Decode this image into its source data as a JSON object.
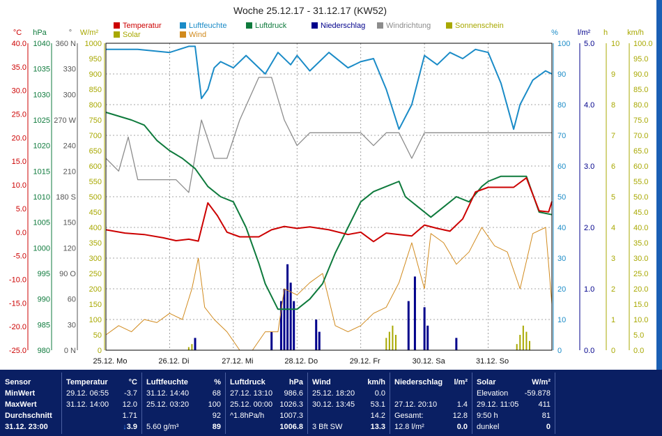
{
  "title": "Woche 25.12.17 - 31.12.17 (KW52)",
  "colors": {
    "temperatur": "#cc0000",
    "luftfeuchte": "#1a8bc7",
    "luftdruck": "#0e7a3c",
    "niederschlag": "#00008b",
    "windrichtung": "#8c8c8c",
    "sonnenschein": "#a8a800",
    "solar": "#a8a800",
    "wind": "#d18a1d",
    "panel_bg": "#0a1f63"
  },
  "legend": [
    {
      "label": "Temperatur",
      "color": "#cc0000"
    },
    {
      "label": "Luftfeuchte",
      "color": "#1a8bc7"
    },
    {
      "label": "Luftdruck",
      "color": "#0e7a3c"
    },
    {
      "label": "Niederschlag",
      "color": "#00008b"
    },
    {
      "label": "Windrichtung",
      "color": "#8c8c8c"
    },
    {
      "label": "Sonnenschein",
      "color": "#a8a800"
    },
    {
      "label": "Solar",
      "color": "#a8a800"
    },
    {
      "label": "Wind",
      "color": "#d18a1d"
    }
  ],
  "chart_data": {
    "type": "line",
    "title": "Woche 25.12.17 - 31.12.17 (KW52)",
    "x_range": [
      0,
      7
    ],
    "x_ticks": [
      "25.12. Mo",
      "26.12. Di",
      "27.12. Mi",
      "28.12. Do",
      "29.12. Fr",
      "30.12. Sa",
      "31.12. So"
    ],
    "grid": true,
    "axes": [
      {
        "unit": "°C",
        "color": "#cc0000",
        "min": -25,
        "max": 40,
        "ticks": [
          "40.0",
          "35.0",
          "30.0",
          "25.0",
          "20.0",
          "15.0",
          "10.0",
          "5.0",
          "0.0",
          "-5.0",
          "-10.0",
          "-15.0",
          "-20.0",
          "-25.0"
        ]
      },
      {
        "unit": "hPa",
        "color": "#0e7a3c",
        "min": 980,
        "max": 1040,
        "ticks": [
          "1040",
          "1035",
          "1030",
          "1025",
          "1020",
          "1015",
          "1010",
          "1005",
          "1000",
          "995",
          "990",
          "985",
          "980"
        ]
      },
      {
        "unit": "°",
        "color": "#555555",
        "min": 0,
        "max": 360,
        "ticks": [
          "360 N",
          "330",
          "300",
          "270 W",
          "240",
          "210",
          "180 S",
          "150",
          "120",
          "90 O",
          "60",
          "30",
          "0 N"
        ]
      },
      {
        "unit": "W/m²",
        "color": "#a8a800",
        "min": 0,
        "max": 1000,
        "ticks": [
          "1000",
          "950",
          "900",
          "850",
          "800",
          "750",
          "700",
          "650",
          "600",
          "550",
          "500",
          "450",
          "400",
          "350",
          "300",
          "250",
          "200",
          "150",
          "100",
          "50",
          "0"
        ]
      },
      {
        "unit": "%",
        "color": "#1a8bc7",
        "min": 0,
        "max": 100,
        "ticks": [
          "100",
          "90",
          "80",
          "70",
          "60",
          "50",
          "40",
          "30",
          "20",
          "10",
          "0"
        ]
      },
      {
        "unit": "l/m²",
        "color": "#00008b",
        "min": 0,
        "max": 5,
        "ticks": [
          "5.0",
          "4.0",
          "3.0",
          "2.0",
          "1.0",
          "0.0"
        ]
      },
      {
        "unit": "h",
        "color": "#a8a800",
        "min": 0,
        "max": 10,
        "ticks": [
          "10",
          "9",
          "8",
          "7",
          "6",
          "5",
          "4",
          "3",
          "2",
          "1",
          "0"
        ]
      },
      {
        "unit": "km/h",
        "color": "#a8a800",
        "min": 0,
        "max": 100,
        "ticks": [
          "100.0",
          "95.0",
          "90.0",
          "85.0",
          "80.0",
          "75.0",
          "70.0",
          "65.0",
          "60.0",
          "55.0",
          "50.0",
          "45.0",
          "40.0",
          "35.0",
          "30.0",
          "25.0",
          "20.0",
          "15.0",
          "10.0",
          "5.0",
          "0.0"
        ]
      }
    ],
    "series": [
      {
        "name": "Temperatur",
        "axis": 0,
        "x": [
          0,
          0.3,
          0.6,
          0.9,
          1.1,
          1.3,
          1.45,
          1.6,
          1.75,
          1.9,
          2.1,
          2.4,
          2.6,
          2.8,
          3.0,
          3.2,
          3.5,
          3.8,
          4.0,
          4.2,
          4.4,
          4.6,
          4.8,
          5.0,
          5.2,
          5.4,
          5.6,
          5.8,
          6.0,
          6.2,
          6.4,
          6.6,
          6.8,
          6.95,
          7.0
        ],
        "values": [
          0.5,
          -0.2,
          -0.5,
          -1.2,
          -1.8,
          -1.5,
          -1.9,
          6.2,
          3.5,
          0,
          -1,
          -1,
          0.5,
          1.2,
          0.8,
          1.1,
          0.5,
          -0.5,
          0,
          -2,
          -0.2,
          -0.5,
          -0.8,
          1.5,
          0.8,
          0.2,
          2.8,
          8.5,
          9.5,
          9.5,
          9.5,
          11.5,
          4.5,
          4.3,
          6.5
        ]
      },
      {
        "name": "Luftfeuchte",
        "axis": 4,
        "x": [
          0,
          0.5,
          1.0,
          1.3,
          1.4,
          1.5,
          1.6,
          1.7,
          1.8,
          2.0,
          2.2,
          2.5,
          2.7,
          2.9,
          3.0,
          3.2,
          3.5,
          3.8,
          4.0,
          4.2,
          4.4,
          4.6,
          4.8,
          5.0,
          5.2,
          5.4,
          5.6,
          5.8,
          6.0,
          6.2,
          6.4,
          6.5,
          6.7,
          6.9,
          7.0
        ],
        "values": [
          98,
          98,
          97,
          99,
          99,
          82,
          85,
          92,
          94,
          92,
          96,
          90,
          97,
          93,
          96,
          91,
          97,
          92,
          94,
          95,
          85,
          72,
          80,
          96,
          93,
          97,
          95,
          98,
          97,
          87,
          72,
          80,
          88,
          91,
          90
        ]
      },
      {
        "name": "Luftdruck",
        "axis": 1,
        "x": [
          0,
          0.4,
          0.6,
          0.8,
          1.0,
          1.2,
          1.4,
          1.6,
          1.8,
          2.0,
          2.2,
          2.4,
          2.5,
          2.7,
          3.0,
          3.2,
          3.4,
          3.6,
          3.8,
          4.0,
          4.2,
          4.4,
          4.6,
          4.7,
          4.9,
          5.1,
          5.3,
          5.5,
          5.7,
          5.9,
          6.0,
          6.2,
          6.4,
          6.6,
          6.8,
          7.0
        ],
        "values": [
          1026.5,
          1025,
          1024,
          1021,
          1019,
          1017.5,
          1015.5,
          1012,
          1010,
          1009,
          1004,
          997,
          993,
          988,
          988,
          990,
          993,
          999,
          1004,
          1009,
          1011,
          1012,
          1013,
          1010,
          1008,
          1006,
          1008,
          1010,
          1009,
          1012,
          1013,
          1014,
          1014,
          1014,
          1007,
          1006.5
        ]
      },
      {
        "name": "Windrichtung",
        "axis": 2,
        "x": [
          0,
          0.2,
          0.35,
          0.5,
          0.7,
          0.9,
          1.1,
          1.3,
          1.5,
          1.7,
          1.9,
          2.1,
          2.4,
          2.6,
          2.8,
          3.0,
          3.2,
          3.5,
          3.8,
          4.0,
          4.2,
          4.4,
          4.6,
          4.8,
          5.0,
          5.2,
          5.4,
          5.6,
          5.8,
          6.0,
          6.2,
          6.4,
          6.6,
          6.8,
          7.0
        ],
        "values": [
          225,
          210,
          250,
          200,
          200,
          200,
          200,
          185,
          270,
          225,
          225,
          270,
          320,
          320,
          270,
          240,
          255,
          255,
          255,
          255,
          240,
          255,
          255,
          225,
          255,
          255,
          255,
          255,
          255,
          255,
          255,
          255,
          255,
          255,
          255
        ]
      },
      {
        "name": "Wind",
        "axis": 7,
        "x": [
          0,
          0.2,
          0.4,
          0.6,
          0.8,
          1.0,
          1.2,
          1.35,
          1.45,
          1.55,
          1.7,
          1.9,
          2.1,
          2.3,
          2.5,
          2.7,
          2.8,
          3.0,
          3.2,
          3.4,
          3.6,
          3.8,
          4.0,
          4.2,
          4.4,
          4.6,
          4.8,
          5.0,
          5.1,
          5.3,
          5.5,
          5.7,
          5.9,
          6.1,
          6.3,
          6.5,
          6.7,
          6.9,
          7.0
        ],
        "values": [
          5,
          8,
          6,
          10,
          9,
          12,
          10,
          20,
          30,
          14,
          10,
          6,
          0,
          0,
          6,
          6,
          20,
          18,
          22,
          25,
          8,
          6,
          8,
          12,
          14,
          22,
          35,
          20,
          38,
          35,
          28,
          32,
          40,
          34,
          32,
          20,
          38,
          40,
          15
        ]
      }
    ],
    "precipitation": {
      "x": [
        1.4,
        2.6,
        2.75,
        2.8,
        2.85,
        2.9,
        2.95,
        3.3,
        3.35,
        4.75,
        4.85,
        5.0,
        5.05,
        5.5
      ],
      "values": [
        0.2,
        0.3,
        0.8,
        1.0,
        1.4,
        1.1,
        0.8,
        0.5,
        0.3,
        0.8,
        1.2,
        0.7,
        0.4,
        0.2
      ]
    },
    "sunshine": {
      "x": [
        1.3,
        1.35,
        4.4,
        4.45,
        4.5,
        4.55,
        6.45,
        6.5,
        6.55,
        6.6,
        6.65
      ],
      "values": [
        0.1,
        0.2,
        0.4,
        0.6,
        0.8,
        0.5,
        0.2,
        0.5,
        0.8,
        0.6,
        0.3
      ]
    }
  },
  "stats": {
    "labels": [
      "Sensor",
      "MinWert",
      "MaxWert",
      "Durchschnitt",
      "31.12. 23:00"
    ],
    "columns": [
      {
        "title": "Temperatur",
        "unit": "°C",
        "min_time": "29.12. 06:55",
        "min_val": "-3.7",
        "max_time": "31.12. 14:00",
        "max_val": "12.0",
        "avg_val": "1.71",
        "cur_extra": "",
        "cur_arrow": "↓",
        "cur_val": "3.9"
      },
      {
        "title": "Luftfeuchte",
        "unit": "%",
        "min_time": "31.12. 14:40",
        "min_val": "68",
        "max_time": "25.12. 03:20",
        "max_val": "100",
        "avg_val": "92",
        "cur_extra": "5.60 g/m³",
        "cur_arrow": "",
        "cur_val": "89"
      },
      {
        "title": "Luftdruck",
        "unit": "hPa",
        "min_time": "27.12. 13:10",
        "min_val": "986.6",
        "max_time": "25.12. 00:00",
        "max_val": "1026.3",
        "avg_val": "1007.3",
        "avg_extra": "^1.8hPa/h",
        "cur_extra": "",
        "cur_arrow": "",
        "cur_val": "1006.8"
      },
      {
        "title": "Wind",
        "unit": "km/h",
        "min_time": "25.12. 18:20",
        "min_val": "0.0",
        "max_time": "30.12. 13:45",
        "max_val": "53.1",
        "avg_val": "14.2",
        "cur_extra": "3 Bft SW",
        "cur_arrow": "",
        "cur_val": "13.3"
      },
      {
        "title": "Niederschlag",
        "unit": "l/m²",
        "min_time": "",
        "min_val": "",
        "max_time": "27.12. 20:10",
        "max_val": "1.4",
        "avg_label": "Gesamt:",
        "avg_val": "12.8",
        "cur_extra": "12.8 l/m²",
        "cur_arrow": "",
        "cur_val": "0.0"
      },
      {
        "title": "Solar",
        "unit": "W/m²",
        "min_time": "Elevation",
        "min_val": "-59.878",
        "max_time": "29.12. 11:05",
        "max_val": "411",
        "avg_label": "9:50 h",
        "avg_val": "81",
        "cur_extra": "dunkel",
        "cur_arrow": "",
        "cur_val": "0"
      }
    ]
  }
}
